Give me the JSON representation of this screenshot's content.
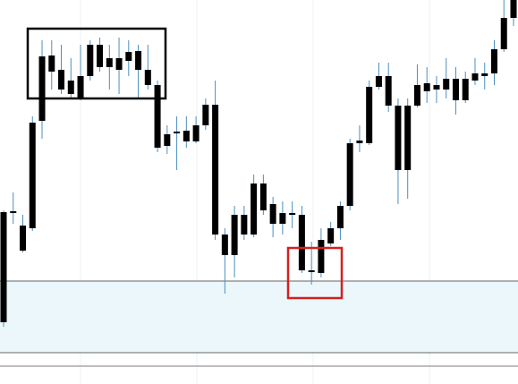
{
  "chart_data": {
    "type": "candlestick",
    "ylim": [
      0,
      429
    ],
    "body_color": "#000000",
    "wick_color": "#4a8fc0",
    "open": [
      69,
      191,
      149,
      174,
      294,
      349,
      329,
      324,
      319,
      344,
      354,
      354,
      351,
      361,
      351,
      334,
      264,
      266,
      280,
      271,
      271,
      289,
      167,
      144,
      144,
      167,
      167,
      194,
      179,
      179,
      189,
      127,
      125,
      124,
      157,
      174,
      199,
      269,
      269,
      332,
      311,
      239,
      239,
      311,
      327,
      329,
      329,
      317,
      317,
      339,
      344,
      347,
      374,
      409
    ],
    "close": [
      192,
      193,
      177,
      292,
      366,
      367,
      351,
      339,
      344,
      379,
      379,
      364,
      364,
      371,
      372,
      351,
      334,
      279,
      282,
      283,
      289,
      312,
      312,
      167,
      189,
      189,
      224,
      224,
      201,
      191,
      191,
      189,
      127,
      161,
      174,
      199,
      269,
      272,
      332,
      344,
      344,
      311,
      311,
      334,
      336,
      334,
      341,
      341,
      341,
      347,
      347,
      374,
      409,
      429
    ],
    "high": [
      194,
      214,
      189,
      299,
      384,
      384,
      379,
      364,
      379,
      384,
      387,
      379,
      387,
      384,
      379,
      379,
      339,
      289,
      299,
      299,
      299,
      319,
      339,
      174,
      199,
      199,
      234,
      234,
      209,
      204,
      204,
      199,
      159,
      174,
      181,
      204,
      274,
      289,
      339,
      359,
      359,
      319,
      319,
      357,
      354,
      344,
      364,
      354,
      349,
      364,
      359,
      384,
      429,
      429
    ],
    "low": [
      64,
      179,
      147,
      171,
      274,
      329,
      324,
      319,
      317,
      339,
      349,
      329,
      324,
      344,
      319,
      329,
      259,
      257,
      239,
      264,
      269,
      284,
      161,
      101,
      119,
      161,
      164,
      189,
      164,
      167,
      174,
      124,
      111,
      119,
      154,
      161,
      194,
      259,
      267,
      329,
      304,
      201,
      207,
      309,
      314,
      314,
      319,
      301,
      314,
      334,
      329,
      334,
      371,
      400
    ]
  }
}
